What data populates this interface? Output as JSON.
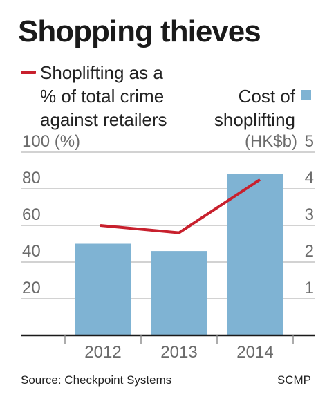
{
  "title": "Shopping thieves",
  "legend": {
    "line_label": "Shoplifting as a\n% of total crime\nagainst retailers",
    "bar_label": "Cost of\nshoplifting"
  },
  "source": "Source: Checkpoint Systems",
  "credit": "SCMP",
  "colors": {
    "bar": "#7fb3d3",
    "line": "#c8202d",
    "grid": "#b8b8b8",
    "axis": "#1a1a1a",
    "tick_text": "#6b6b6b"
  },
  "chart_data": {
    "type": "bar",
    "title": "Shopping thieves",
    "categories": [
      "2012",
      "2013",
      "2014"
    ],
    "series": [
      {
        "name": "Cost of shoplifting",
        "type": "bar",
        "axis": "right",
        "values": [
          2.5,
          2.3,
          4.4
        ]
      },
      {
        "name": "Shoplifting as a % of total crime against retailers",
        "type": "line",
        "axis": "left",
        "values": [
          60,
          56,
          85
        ]
      }
    ],
    "left_axis": {
      "ylim": [
        0,
        100
      ],
      "ticks": [
        20,
        40,
        60,
        80,
        100
      ],
      "tick_labels": [
        "20",
        "40",
        "60",
        "80",
        "100 (%)"
      ]
    },
    "right_axis": {
      "ylim": [
        0,
        5
      ],
      "ticks": [
        1,
        2,
        3,
        4,
        5
      ],
      "tick_labels": [
        "1",
        "2",
        "3",
        "4",
        "5"
      ],
      "unit_label": "(HK$b)"
    },
    "grid": true
  }
}
